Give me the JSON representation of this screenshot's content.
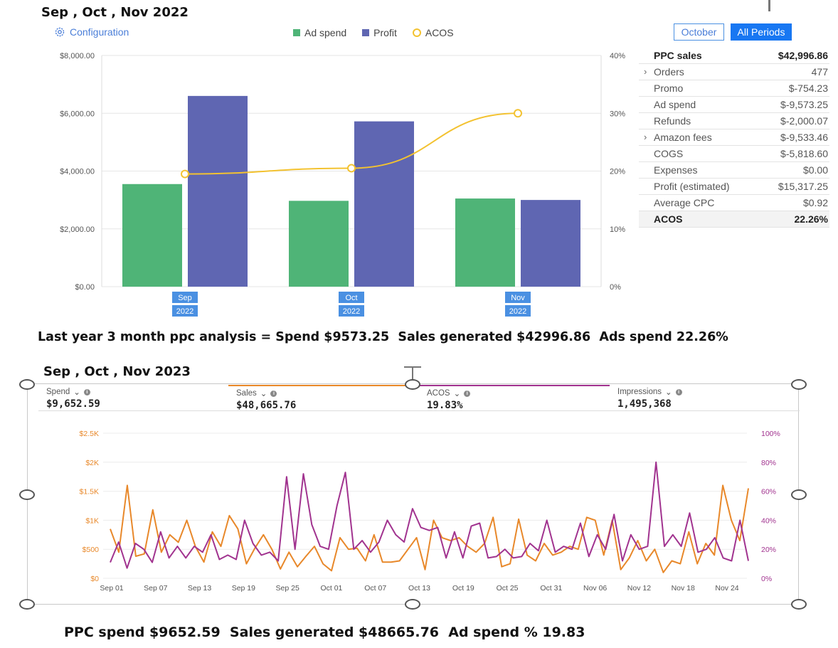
{
  "top": {
    "heading": "Sep , Oct , Nov 2022",
    "config_label": "Configuration",
    "legend": {
      "ad_spend": "Ad spend",
      "profit": "Profit",
      "acos": "ACOS"
    },
    "buttons": {
      "october": "October",
      "all_periods": "All Periods"
    },
    "stats": [
      {
        "label": "PPC sales",
        "value": "$42,996.86",
        "bold": true,
        "chevron": false,
        "shade": false
      },
      {
        "label": "Orders",
        "value": "477",
        "bold": false,
        "chevron": true,
        "shade": false
      },
      {
        "label": "Promo",
        "value": "$-754.23",
        "bold": false,
        "chevron": false,
        "shade": false
      },
      {
        "label": "Ad spend",
        "value": "$-9,573.25",
        "bold": false,
        "chevron": false,
        "shade": false
      },
      {
        "label": "Refunds",
        "value": "$-2,000.07",
        "bold": false,
        "chevron": false,
        "shade": false
      },
      {
        "label": "Amazon fees",
        "value": "$-9,533.46",
        "bold": false,
        "chevron": true,
        "shade": false
      },
      {
        "label": "COGS",
        "value": "$-5,818.60",
        "bold": false,
        "chevron": false,
        "shade": false
      },
      {
        "label": "Expenses",
        "value": "$0.00",
        "bold": false,
        "chevron": false,
        "shade": false
      },
      {
        "label": "Profit (estimated)",
        "value": "$15,317.25",
        "bold": false,
        "chevron": false,
        "shade": false
      },
      {
        "label": "Average CPC",
        "value": "$0.92",
        "bold": false,
        "chevron": false,
        "shade": false
      },
      {
        "label": "ACOS",
        "value": "22.26%",
        "bold": true,
        "chevron": false,
        "shade": true
      }
    ],
    "summary": "Last year 3 month ppc analysis = Spend $9573.25  Sales generated $42996.86  Ads spend 22.26%"
  },
  "bottom": {
    "heading": "Sep , Oct , Nov 2023",
    "tabs": [
      {
        "label": "Spend",
        "value": "$9,652.59",
        "accent": ""
      },
      {
        "label": "Sales",
        "value": "$48,665.76",
        "accent": "#e8882a"
      },
      {
        "label": "ACOS",
        "value": "19.83%",
        "accent": "#a1338f"
      },
      {
        "label": "Impressions",
        "value": "1,495,368",
        "accent": ""
      }
    ],
    "summary": "PPC spend $9652.59  Sales generated $48665.76  Ad spend % 19.83"
  },
  "colors": {
    "ad_spend": "#4fb477",
    "profit": "#5f66b2",
    "acos_line": "#f3c230",
    "sales_line": "#e8882a",
    "acos2_line": "#a1338f",
    "period_badge": "#4a90e2"
  },
  "chart_data": [
    {
      "type": "bar",
      "title": "Sep , Oct , Nov 2022",
      "categories": [
        "Sep",
        "Oct",
        "Nov"
      ],
      "category_years": [
        "2022",
        "2022",
        "2022"
      ],
      "series": [
        {
          "name": "Ad spend",
          "axis": "left",
          "values": [
            3550,
            2970,
            3050
          ]
        },
        {
          "name": "Profit",
          "axis": "left",
          "values": [
            6600,
            5720,
            3000
          ]
        },
        {
          "name": "ACOS",
          "axis": "right",
          "kind": "line",
          "values": [
            19.5,
            20.5,
            30.0
          ]
        }
      ],
      "y_left": {
        "min": 0,
        "max": 8000,
        "ticks": [
          "$0.00",
          "$2,000.00",
          "$4,000.00",
          "$6,000.00",
          "$8,000.00"
        ]
      },
      "y_right": {
        "min": 0,
        "max": 40,
        "ticks": [
          "0%",
          "10%",
          "20%",
          "30%",
          "40%"
        ]
      },
      "grid": true
    },
    {
      "type": "line",
      "title": "Sep , Oct , Nov 2023",
      "x_ticks": [
        "Sep 01",
        "Sep 07",
        "Sep 13",
        "Sep 19",
        "Sep 25",
        "Oct 01",
        "Oct 07",
        "Oct 13",
        "Oct 19",
        "Oct 25",
        "Oct 31",
        "Nov 06",
        "Nov 12",
        "Nov 18",
        "Nov 24"
      ],
      "series": [
        {
          "name": "Sales",
          "axis": "left",
          "values": [
            850,
            450,
            1600,
            380,
            420,
            1180,
            450,
            750,
            620,
            1000,
            550,
            280,
            800,
            550,
            1080,
            850,
            250,
            520,
            750,
            500,
            160,
            450,
            200,
            380,
            550,
            250,
            130,
            700,
            500,
            520,
            300,
            750,
            280,
            280,
            300,
            500,
            700,
            150,
            1000,
            700,
            650,
            700,
            550,
            450,
            600,
            1050,
            200,
            250,
            1020,
            400,
            300,
            600,
            400,
            450,
            550,
            500,
            1050,
            1000,
            400,
            1000,
            150,
            350,
            650,
            300,
            500,
            100,
            300,
            250,
            800,
            250,
            600,
            400,
            1600,
            1000,
            650,
            1550
          ]
        },
        {
          "name": "ACOS",
          "axis": "right",
          "values": [
            11,
            25,
            7,
            24,
            20,
            11,
            32,
            14,
            22,
            14,
            22,
            18,
            30,
            13,
            16,
            13,
            40,
            24,
            16,
            18,
            12,
            70,
            20,
            72,
            37,
            22,
            20,
            50,
            73,
            20,
            26,
            18,
            25,
            40,
            30,
            25,
            48,
            35,
            33,
            35,
            14,
            32,
            14,
            36,
            38,
            14,
            15,
            20,
            14,
            15,
            24,
            19,
            40,
            18,
            22,
            20,
            38,
            15,
            30,
            20,
            44,
            12,
            30,
            20,
            22,
            80,
            22,
            30,
            22,
            45,
            18,
            20,
            28,
            14,
            12,
            40,
            12
          ]
        }
      ],
      "y_left": {
        "min": 0,
        "max": 2500,
        "ticks": [
          "$0",
          "$500",
          "$1K",
          "$1.5K",
          "$2K",
          "$2.5K"
        ]
      },
      "y_right": {
        "min": 0,
        "max": 100,
        "ticks": [
          "0%",
          "20%",
          "40%",
          "60%",
          "80%",
          "100%"
        ]
      },
      "grid": true
    }
  ]
}
